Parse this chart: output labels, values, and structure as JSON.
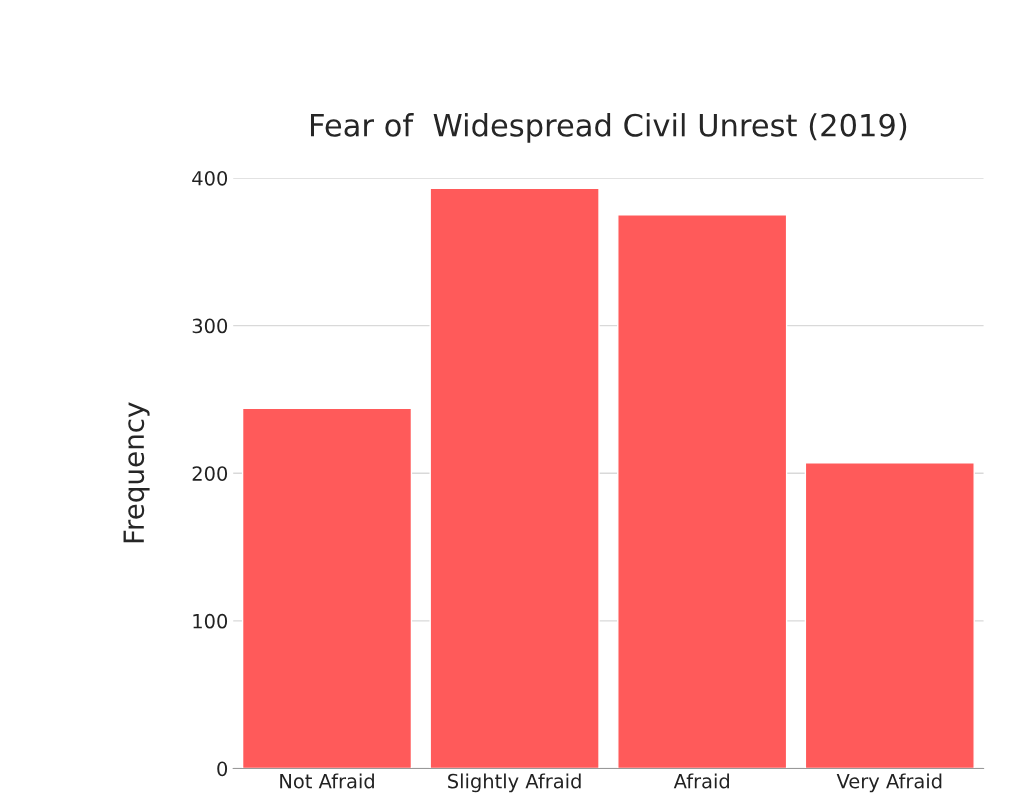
{
  "chart_data": {
    "type": "bar",
    "title": "Fear of  Widespread Civil Unrest (2019)",
    "ylabel": "Frequency",
    "categories": [
      "Not Afraid",
      "Slightly Afraid",
      "Afraid",
      "Very Afraid"
    ],
    "values": [
      244,
      393,
      375,
      207
    ],
    "color": "#ff5a5a",
    "ylim": [
      0,
      400
    ],
    "yticks": [
      0,
      100,
      200,
      300,
      400
    ],
    "grid": "y",
    "legend": false
  }
}
